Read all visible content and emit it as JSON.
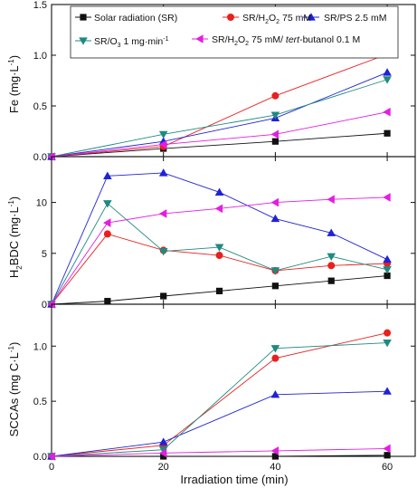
{
  "chart_data": {
    "type": "line",
    "xlabel": "Irradiation time (min)",
    "xlim": [
      0,
      65
    ],
    "xticks": [
      "0",
      "20",
      "40",
      "60"
    ],
    "legend": {
      "placement": "top",
      "entries": [
        {
          "id": "sr",
          "label": "Solar radiation (SR)"
        },
        {
          "id": "h2o2",
          "label": "SR/H2O2 75 mM"
        },
        {
          "id": "ps",
          "label": "SR/PS 2.5 mM"
        },
        {
          "id": "o3",
          "label": "SR/O3 1 mg·min-1"
        },
        {
          "id": "tbu",
          "label": "SR/H2O2 75 mM/ tert-butanol 0.1 M"
        }
      ]
    },
    "series_styles": {
      "sr": {
        "color": "#111111",
        "marker": "square"
      },
      "h2o2": {
        "color": "#e8201e",
        "marker": "circle"
      },
      "ps": {
        "color": "#1f22d6",
        "marker": "triangle-up"
      },
      "o3": {
        "color": "#1f8a7f",
        "marker": "triangle-down"
      },
      "tbu": {
        "color": "#e31ee0",
        "marker": "triangle-left"
      }
    },
    "panels": [
      {
        "ylabel": "Fe (mg·L-1)",
        "ylim": [
          0,
          1.5
        ],
        "yticks": [
          "0.0",
          "0.5",
          "1.0",
          "1.5"
        ],
        "series": [
          {
            "id": "sr",
            "x": [
              0,
              20,
              40,
              60
            ],
            "values": [
              0.0,
              0.08,
              0.15,
              0.23
            ]
          },
          {
            "id": "h2o2",
            "x": [
              0,
              20,
              40,
              60
            ],
            "values": [
              0.0,
              0.1,
              0.6,
              1.01
            ]
          },
          {
            "id": "ps",
            "x": [
              0,
              20,
              40,
              60
            ],
            "values": [
              0.0,
              0.15,
              0.38,
              0.83
            ]
          },
          {
            "id": "o3",
            "x": [
              0,
              20,
              40,
              60
            ],
            "values": [
              0.0,
              0.22,
              0.41,
              0.76
            ]
          },
          {
            "id": "tbu",
            "x": [
              0,
              20,
              40,
              60
            ],
            "values": [
              0.0,
              0.12,
              0.22,
              0.44
            ]
          }
        ]
      },
      {
        "ylabel": "H2BDC (mg·L-1)",
        "ylim": [
          0,
          14.5
        ],
        "yticks": [
          "0",
          "5",
          "10"
        ],
        "series": [
          {
            "id": "sr",
            "x": [
              0,
              10,
              20,
              30,
              40,
              50,
              60
            ],
            "values": [
              0.0,
              0.3,
              0.8,
              1.3,
              1.8,
              2.3,
              2.8
            ]
          },
          {
            "id": "h2o2",
            "x": [
              0,
              10,
              20,
              30,
              40,
              50,
              60
            ],
            "values": [
              0.0,
              6.9,
              5.3,
              4.8,
              3.3,
              3.8,
              4.0
            ]
          },
          {
            "id": "ps",
            "x": [
              0,
              10,
              20,
              30,
              40,
              50,
              60
            ],
            "values": [
              0.0,
              12.6,
              12.9,
              11.0,
              8.4,
              7.0,
              4.4
            ]
          },
          {
            "id": "o3",
            "x": [
              0,
              10,
              20,
              30,
              40,
              50,
              60
            ],
            "values": [
              0.0,
              9.9,
              5.2,
              5.6,
              3.3,
              4.7,
              3.4
            ]
          },
          {
            "id": "tbu",
            "x": [
              0,
              10,
              20,
              30,
              40,
              50,
              60
            ],
            "values": [
              0.0,
              8.0,
              8.9,
              9.4,
              10.0,
              10.3,
              10.5
            ]
          }
        ]
      },
      {
        "ylabel": "SCCAs (mg C·L-1)",
        "ylim": [
          0,
          1.38
        ],
        "yticks": [
          "0.0",
          "0.5",
          "1.0"
        ],
        "series": [
          {
            "id": "sr",
            "x": [
              0,
              20,
              40,
              60
            ],
            "values": [
              0.0,
              0.0,
              0.0,
              0.01
            ]
          },
          {
            "id": "h2o2",
            "x": [
              0,
              20,
              40,
              60
            ],
            "values": [
              0.0,
              0.1,
              0.89,
              1.12
            ]
          },
          {
            "id": "ps",
            "x": [
              0,
              20,
              40,
              60
            ],
            "values": [
              0.0,
              0.13,
              0.56,
              0.59
            ]
          },
          {
            "id": "o3",
            "x": [
              0,
              20,
              40,
              60
            ],
            "values": [
              0.0,
              0.06,
              0.98,
              1.03
            ]
          },
          {
            "id": "tbu",
            "x": [
              0,
              20,
              40,
              60
            ],
            "values": [
              0.0,
              0.03,
              0.05,
              0.07
            ]
          }
        ]
      }
    ]
  }
}
